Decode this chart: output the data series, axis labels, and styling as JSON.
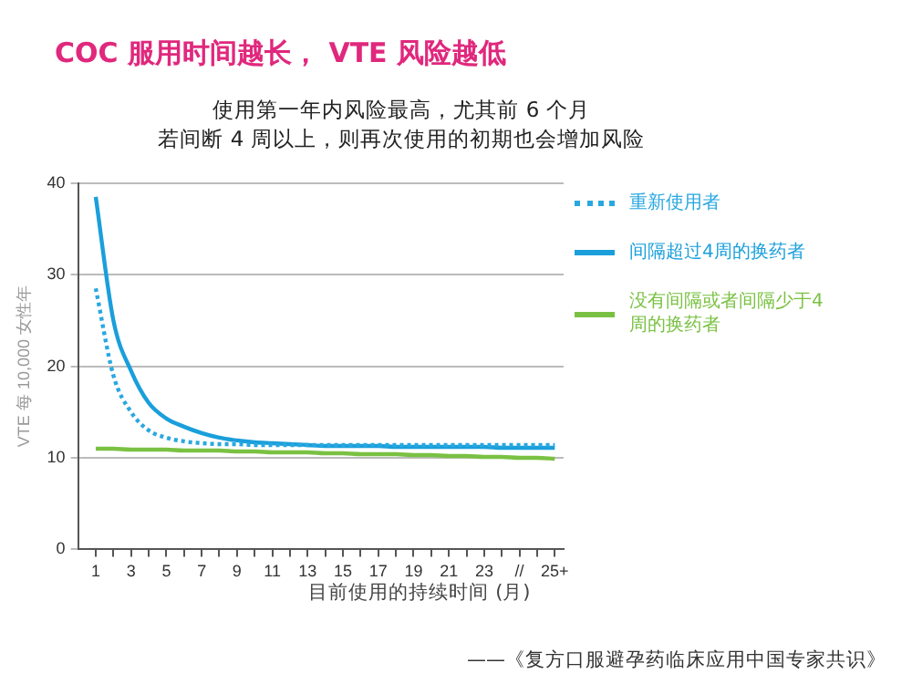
{
  "chart_data": {
    "type": "line",
    "title": "COC 服用时间越长， VTE 风险越低",
    "subtitle": "使用第一年内风险最高，尤其前 6 个月",
    "xlabel": "目前使用的持续时间 (月)",
    "ylabel": "VTE 每 10,000 女性年",
    "x": [
      1,
      2,
      3,
      4,
      5,
      6,
      7,
      8,
      9,
      10,
      11,
      12,
      13,
      14,
      15,
      16,
      17,
      18,
      19,
      20,
      21,
      22,
      23,
      24,
      25,
      26,
      27
    ],
    "xlim": [
      0,
      27.5
    ],
    "xticks": [
      1,
      {
        "value": 2,
        "label": null
      },
      3,
      {
        "value": 4,
        "label": null
      },
      5,
      {
        "value": 6,
        "label": null
      },
      7,
      {
        "value": 8,
        "label": null
      },
      9,
      {
        "value": 10,
        "label": null
      },
      11,
      {
        "value": 12,
        "label": null
      },
      13,
      {
        "value": 14,
        "label": null
      },
      15,
      {
        "value": 16,
        "label": null
      },
      17,
      {
        "value": 18,
        "label": null
      },
      19,
      {
        "value": 20,
        "label": null
      },
      21,
      {
        "value": 22,
        "label": null
      },
      23,
      {
        "value": 24,
        "label": null
      },
      {
        "value": 25,
        "label": "//"
      },
      {
        "value": 26,
        "label": null
      },
      {
        "value": 27,
        "label": "25+"
      }
    ],
    "series": [
      {
        "name": "重新使用者",
        "color": "#29a8e0",
        "line_style": "dotted",
        "values": [
          28.5,
          19,
          15,
          13,
          12.2,
          11.8,
          11.6,
          11.5,
          11.5,
          11.4,
          11.4,
          11.4,
          11.4,
          11.4,
          11.4,
          11.4,
          11.4,
          11.4,
          11.4,
          11.4,
          11.4,
          11.4,
          11.4,
          11.4,
          11.4,
          11.4,
          11.4
        ]
      },
      {
        "name": "间隔超过4周的换药者",
        "color": "#1a9fdb",
        "line_style": "solid",
        "values": [
          38.5,
          25,
          19.5,
          16,
          14.3,
          13.4,
          12.7,
          12.2,
          11.9,
          11.7,
          11.6,
          11.5,
          11.4,
          11.3,
          11.3,
          11.3,
          11.3,
          11.2,
          11.2,
          11.2,
          11.2,
          11.2,
          11.2,
          11.1,
          11.1,
          11.1,
          11.1
        ]
      },
      {
        "name": "没有间隔或者间隔少于4周的换药者",
        "color": "#7ac143",
        "line_style": "solid",
        "values": [
          11.0,
          11.0,
          10.9,
          10.9,
          10.9,
          10.8,
          10.8,
          10.8,
          10.7,
          10.7,
          10.6,
          10.6,
          10.6,
          10.5,
          10.5,
          10.4,
          10.4,
          10.4,
          10.3,
          10.3,
          10.2,
          10.2,
          10.1,
          10.1,
          10.0,
          10.0,
          9.9
        ]
      }
    ],
    "ylim": [
      0,
      40
    ],
    "yticks": [
      0,
      10,
      20,
      30,
      40
    ],
    "grid": "y",
    "legend": "right",
    "marker": "none",
    "annotations": [
      "若间断 4 周以上，则再次使用的初期也会增加风险",
      "——《复方口服避孕药临床应用中国专家共识》"
    ]
  }
}
